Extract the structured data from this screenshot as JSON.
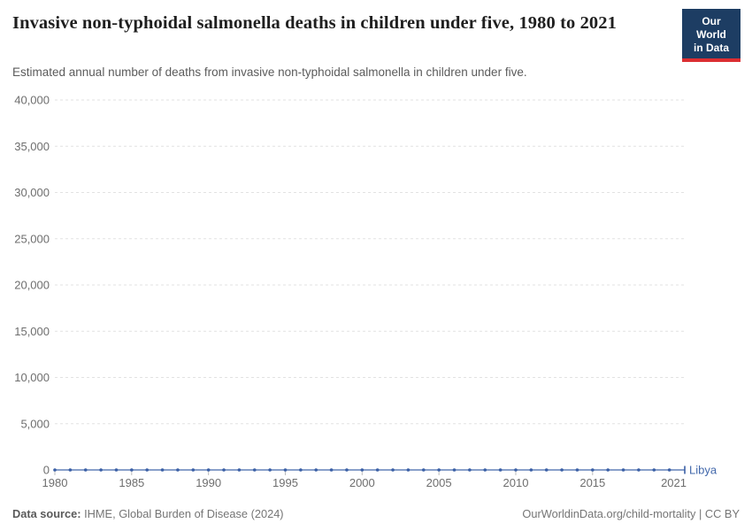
{
  "header": {
    "title": "Invasive non-typhoidal salmonella deaths in children under five, 1980 to 2021",
    "subtitle": "Estimated annual number of deaths from invasive non-typhoidal salmonella in children under five.",
    "logo": {
      "line1": "Our World",
      "line2": "in Data",
      "bg_color": "#1d3d63",
      "accent_color": "#dc2e32"
    }
  },
  "chart_data": {
    "type": "line",
    "title": "Invasive non-typhoidal salmonella deaths in children under five, 1980 to 2021",
    "xlabel": "",
    "ylabel": "",
    "xlim": [
      1980,
      2021
    ],
    "ylim": [
      0,
      40000
    ],
    "grid": "horizontal-dashed",
    "legend_position": "end-of-line",
    "x": [
      1980,
      1981,
      1982,
      1983,
      1984,
      1985,
      1986,
      1987,
      1988,
      1989,
      1990,
      1991,
      1992,
      1993,
      1994,
      1995,
      1996,
      1997,
      1998,
      1999,
      2000,
      2001,
      2002,
      2003,
      2004,
      2005,
      2006,
      2007,
      2008,
      2009,
      2010,
      2011,
      2012,
      2013,
      2014,
      2015,
      2016,
      2017,
      2018,
      2019,
      2020,
      2021
    ],
    "series": [
      {
        "name": "Libya",
        "values": [
          0,
          0,
          0,
          0,
          0,
          0,
          0,
          0,
          0,
          0,
          0,
          0,
          0,
          0,
          0,
          0,
          0,
          0,
          0,
          0,
          0,
          0,
          0,
          0,
          0,
          0,
          0,
          0,
          0,
          0,
          0,
          0,
          0,
          0,
          0,
          0,
          0,
          0,
          0,
          0,
          0,
          0
        ]
      }
    ],
    "yticks": [
      {
        "value": 0,
        "label": "0"
      },
      {
        "value": 5000,
        "label": "5,000"
      },
      {
        "value": 10000,
        "label": "10,000"
      },
      {
        "value": 15000,
        "label": "15,000"
      },
      {
        "value": 20000,
        "label": "20,000"
      },
      {
        "value": 25000,
        "label": "25,000"
      },
      {
        "value": 30000,
        "label": "30,000"
      },
      {
        "value": 35000,
        "label": "35,000"
      },
      {
        "value": 40000,
        "label": "40,000"
      }
    ],
    "xticks": [
      {
        "value": 1980,
        "label": "1980"
      },
      {
        "value": 1985,
        "label": "1985"
      },
      {
        "value": 1990,
        "label": "1990"
      },
      {
        "value": 1995,
        "label": "1995"
      },
      {
        "value": 2000,
        "label": "2000"
      },
      {
        "value": 2005,
        "label": "2005"
      },
      {
        "value": 2010,
        "label": "2010"
      },
      {
        "value": 2015,
        "label": "2015"
      },
      {
        "value": 2021,
        "label": "2021"
      }
    ],
    "colors": {
      "line": "#6080b8",
      "points": "#3a5fa5",
      "entity_label": "#4268ab"
    }
  },
  "footer": {
    "source_label": "Data source:",
    "source_value": "IHME, Global Burden of Disease (2024)",
    "credit": "OurWorldinData.org/child-mortality | CC BY"
  }
}
